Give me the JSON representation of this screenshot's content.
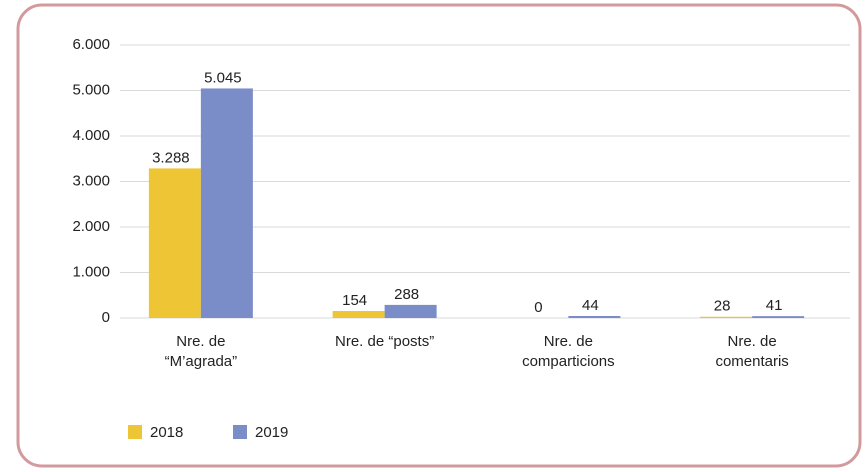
{
  "chart_data": {
    "type": "bar",
    "categories": [
      "Nre. de\n“M’agrada”",
      "Nre. de “posts”",
      "Nre. de\ncomparticions",
      "Nre. de\ncomentaris"
    ],
    "series": [
      {
        "name": "2018",
        "color": "#eec535",
        "values": [
          3288,
          154,
          0,
          28
        ],
        "value_labels": [
          "3.288",
          "154",
          "0",
          "28"
        ]
      },
      {
        "name": "2019",
        "color": "#7b8dc9",
        "values": [
          5045,
          288,
          44,
          41
        ],
        "value_labels": [
          "5.045",
          "288",
          "44",
          "41"
        ]
      }
    ],
    "ylim": [
      0,
      6000
    ],
    "yticks": [
      0,
      {
        "value": 1000,
        "label": "1.000"
      },
      {
        "value": 2000,
        "label": "2.000"
      },
      {
        "value": 3000,
        "label": "3.000"
      },
      {
        "value": 4000,
        "label": "4.000"
      },
      {
        "value": 5000,
        "label": "5.000"
      },
      {
        "value": 6000,
        "label": "6.000"
      }
    ],
    "grid": true,
    "legend": "bottom-left"
  }
}
